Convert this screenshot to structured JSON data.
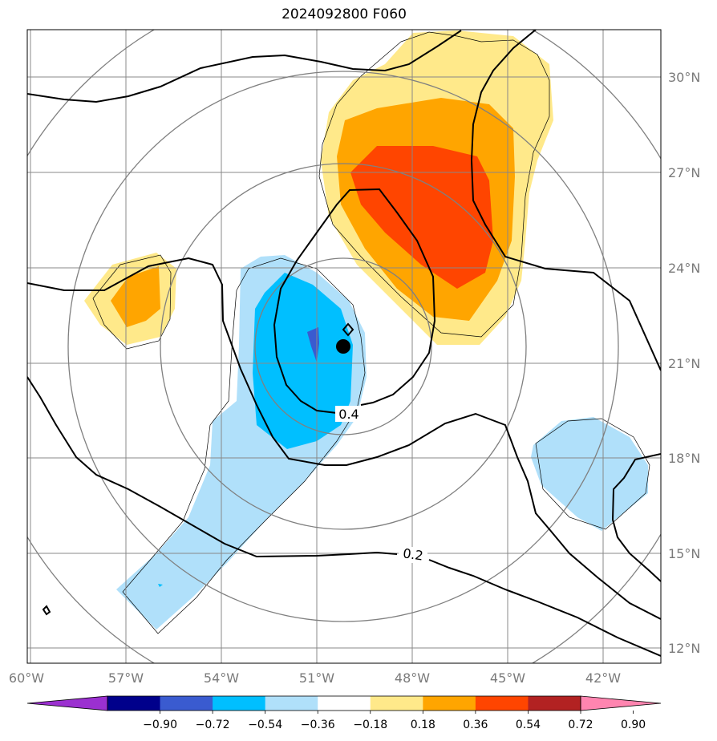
{
  "chart_data": {
    "type": "contour-map",
    "title": "2024092800 F060",
    "projection": "regional lat/lon map",
    "xlim_deg_lon": [
      -60,
      -40.5
    ],
    "ylim_deg_lat": [
      11.5,
      32
    ],
    "x_ticks": [
      {
        "value": -60,
        "label": "60°W"
      },
      {
        "value": -57,
        "label": "57°W"
      },
      {
        "value": -54,
        "label": "54°W"
      },
      {
        "value": -51,
        "label": "51°W"
      },
      {
        "value": -48,
        "label": "48°W"
      },
      {
        "value": -45,
        "label": "45°W"
      },
      {
        "value": -42,
        "label": "42°W"
      }
    ],
    "y_ticks": [
      {
        "value": 30,
        "label": "30°N"
      },
      {
        "value": 27,
        "label": "27°N"
      },
      {
        "value": 24,
        "label": "24°N"
      },
      {
        "value": 21,
        "label": "21°N"
      },
      {
        "value": 18,
        "label": "18°N"
      },
      {
        "value": 15,
        "label": "15°N"
      },
      {
        "value": 12,
        "label": "12°N"
      }
    ],
    "grid": true,
    "range_rings_center": {
      "lon": -50.1,
      "lat": 21.6
    },
    "contour_labels": [
      "0.4",
      "0.2"
    ],
    "storm_center": {
      "lon": -50.1,
      "lat": 21.6
    },
    "colorbar": {
      "orientation": "horizontal",
      "extend": "both",
      "levels": [
        -0.9,
        -0.72,
        -0.54,
        -0.36,
        -0.18,
        0.18,
        0.36,
        0.54,
        0.72,
        0.9
      ],
      "tick_labels": [
        "−0.90",
        "−0.72",
        "−0.54",
        "−0.36",
        "−0.18",
        "0.18",
        "0.36",
        "0.54",
        "0.72",
        "0.90"
      ],
      "colors": [
        "#9b30d0",
        "#00008b",
        "#3a5bd0",
        "#00bfff",
        "#b0e0fa",
        "#ffffff",
        "#ffe98a",
        "#ffa500",
        "#ff4500",
        "#b22222",
        "#ff85b0"
      ]
    }
  }
}
